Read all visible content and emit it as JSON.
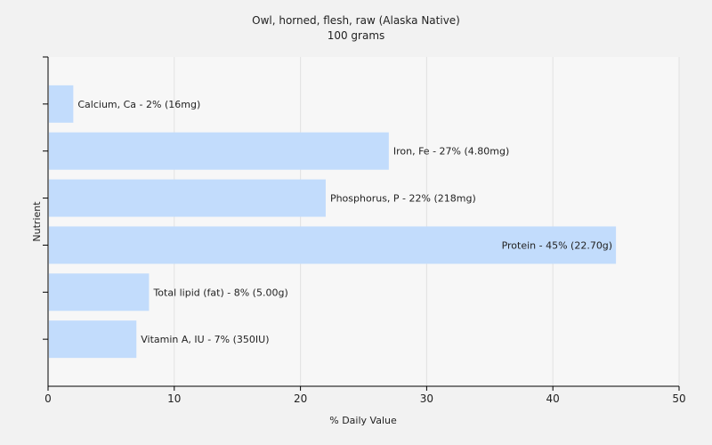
{
  "chart_data": {
    "type": "bar",
    "orientation": "horizontal",
    "title": "Owl, horned, flesh, raw (Alaska Native)",
    "subtitle": "100 grams",
    "xlabel": "% Daily Value",
    "ylabel": "Nutrient",
    "xlim": [
      0,
      50
    ],
    "xticks": [
      0,
      10,
      20,
      30,
      40,
      50
    ],
    "grid": true,
    "categories": [
      "Calcium, Ca",
      "Iron, Fe",
      "Phosphorus, P",
      "Protein",
      "Total lipid (fat)",
      "Vitamin A, IU"
    ],
    "values": [
      2,
      27,
      22,
      45,
      8,
      7
    ],
    "data_labels": [
      "Calcium, Ca - 2% (16mg)",
      "Iron, Fe - 27% (4.80mg)",
      "Phosphorus, P - 22% (218mg)",
      "Protein - 45% (22.70g)",
      "Total lipid (fat) - 8% (5.00g)",
      "Vitamin A, IU - 7% (350IU)"
    ],
    "colors": {
      "bar": "#c2dcfc",
      "background": "#f2f2f2",
      "plot_background": "#f7f7f7",
      "grid": "#e2e2e2",
      "axis": "#000000"
    }
  }
}
